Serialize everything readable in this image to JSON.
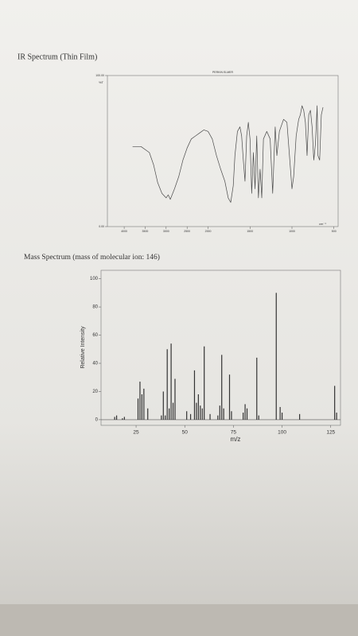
{
  "chart_data": [
    {
      "type": "line",
      "title": "IR Spectrum (Thin Film)",
      "subtitle": "PERKIN ELMER",
      "y_label": "%T",
      "x_label": "cm⁻¹",
      "x": [
        3800,
        3600,
        3400,
        3300,
        3200,
        3100,
        3000,
        2950,
        2900,
        2800,
        2700,
        2600,
        2500,
        2400,
        2300,
        2200,
        2100,
        2000,
        1950,
        1900,
        1850,
        1800,
        1760,
        1730,
        1700,
        1680,
        1650,
        1620,
        1600,
        1580,
        1560,
        1540,
        1520,
        1500,
        1480,
        1460,
        1440,
        1420,
        1400,
        1380,
        1360,
        1340,
        1300,
        1260,
        1230,
        1200,
        1180,
        1150,
        1100,
        1060,
        1030,
        1000,
        980,
        950,
        920,
        900,
        880,
        860,
        840,
        820,
        800,
        780,
        760,
        740,
        720,
        700,
        690,
        670,
        650,
        630
      ],
      "series": [
        {
          "name": "%T",
          "color": "#4a4a4a",
          "values": [
            53,
            53,
            49,
            41,
            29,
            22,
            19,
            21,
            18,
            25,
            33,
            44,
            52,
            58,
            60,
            62,
            64,
            63,
            58,
            47,
            38,
            30,
            19,
            16,
            27,
            47,
            63,
            66,
            60,
            44,
            30,
            60,
            69,
            58,
            22,
            49,
            25,
            60,
            19,
            38,
            19,
            58,
            63,
            58,
            22,
            66,
            47,
            63,
            71,
            69,
            47,
            25,
            33,
            60,
            71,
            74,
            80,
            77,
            69,
            47,
            74,
            77,
            66,
            44,
            55,
            80,
            47,
            44,
            74,
            79
          ]
        }
      ],
      "xlim": [
        4400,
        450
      ],
      "x_scale_break": 2000,
      "xticks": [
        4000,
        3500,
        3000,
        2500,
        2000,
        1500,
        1000,
        500
      ],
      "ylim": [
        0,
        100
      ],
      "yticks": [
        {
          "value": 0,
          "label": "0.00"
        },
        {
          "value": 100,
          "label": "100.00"
        }
      ]
    },
    {
      "type": "bar",
      "title": "Mass Spectrum (mass of molecular ion: 146)",
      "y_label": "Relative Intensity",
      "x_label": "m/z",
      "x": [
        14,
        15,
        18,
        19,
        26,
        27,
        28,
        29,
        31,
        38,
        39,
        40,
        41,
        42,
        43,
        44,
        45,
        51,
        53,
        55,
        56,
        57,
        58,
        59,
        60,
        63,
        67,
        68,
        69,
        70,
        73,
        74,
        80,
        81,
        82,
        87,
        88,
        97,
        99,
        100,
        109,
        127,
        128
      ],
      "values": [
        2,
        3,
        1,
        2,
        15,
        27,
        18,
        22,
        8,
        3,
        20,
        3,
        50,
        8,
        54,
        12,
        29,
        6,
        4,
        35,
        12,
        18,
        10,
        8,
        52,
        4,
        3,
        10,
        46,
        8,
        32,
        6,
        5,
        11,
        8,
        44,
        3,
        90,
        9,
        5,
        4,
        24,
        5
      ],
      "color": "#333333",
      "xlim": [
        7,
        130
      ],
      "xticks": [
        25,
        50,
        75,
        100,
        125
      ],
      "ylim": [
        -4,
        106
      ],
      "yticks": [
        0,
        20,
        40,
        60,
        80,
        100
      ]
    }
  ]
}
